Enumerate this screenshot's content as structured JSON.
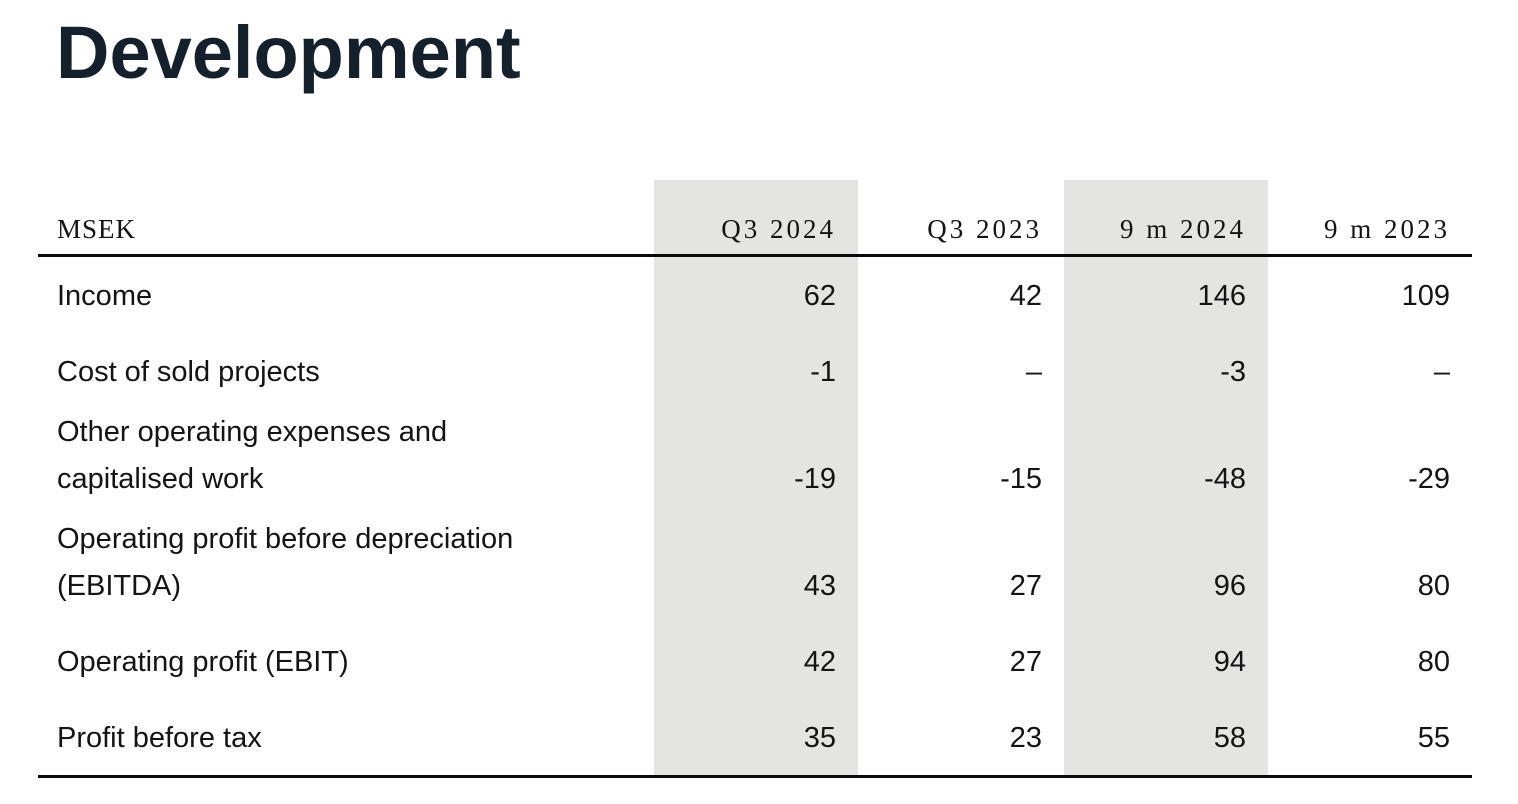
{
  "page": {
    "title": "Development"
  },
  "colors": {
    "title": "#15202d",
    "text": "#141414",
    "rule": "#0b0b0b",
    "column_highlight_bg": "#e4e4e3"
  },
  "table": {
    "unit_label": "MSEK",
    "columns": [
      {
        "label": "Q3 2024",
        "highlighted": true
      },
      {
        "label": "Q3 2023",
        "highlighted": false
      },
      {
        "label": "9 m 2024",
        "highlighted": true
      },
      {
        "label": "9 m 2023",
        "highlighted": false
      }
    ],
    "rows": [
      {
        "label_lines": [
          "Income"
        ],
        "values": [
          "62",
          "42",
          "146",
          "109"
        ]
      },
      {
        "label_lines": [
          "Cost of sold projects"
        ],
        "values": [
          "-1",
          "–",
          "-3",
          "–"
        ]
      },
      {
        "label_lines": [
          "Other operating expenses and",
          "capitalised work"
        ],
        "values": [
          "-19",
          "-15",
          "-48",
          "-29"
        ]
      },
      {
        "label_lines": [
          "Operating profit before depreciation",
          "(EBITDA)"
        ],
        "values": [
          "43",
          "27",
          "96",
          "80"
        ]
      },
      {
        "label_lines": [
          "Operating profit (EBIT)"
        ],
        "values": [
          "42",
          "27",
          "94",
          "80"
        ]
      },
      {
        "label_lines": [
          "Profit before tax"
        ],
        "values": [
          "35",
          "23",
          "58",
          "55"
        ]
      }
    ]
  }
}
